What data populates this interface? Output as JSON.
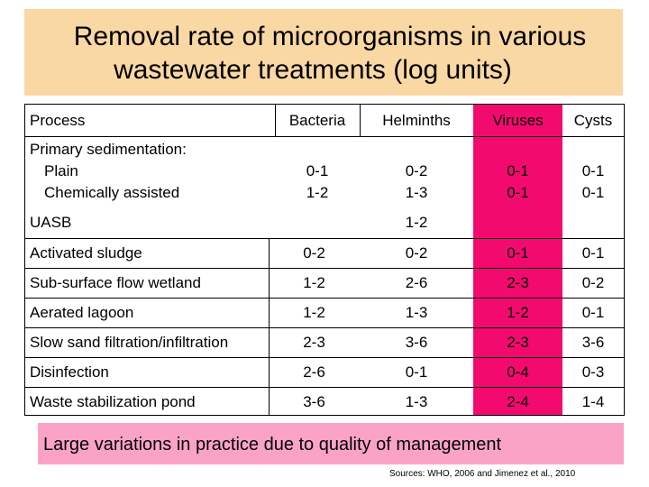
{
  "title": {
    "line1": "Removal rate of microorganisms in various",
    "line2": "wastewater treatments (log units)"
  },
  "table": {
    "headers": {
      "process": "Process",
      "bacteria": "Bacteria",
      "helminths": "Helminths",
      "viruses": "Viruses",
      "cysts": "Cysts"
    },
    "primary": {
      "label1": "Primary sedimentation:",
      "label2": "Plain",
      "label3": "Chemically assisted",
      "bacteria1": "0-1",
      "bacteria2": "1-2",
      "helminths1": "0-2",
      "helminths2": "1-3",
      "viruses1": "0-1",
      "viruses2": "0-1",
      "cysts1": "0-1",
      "cysts2": "0-1"
    },
    "uasb": {
      "label": "UASB",
      "helminths": "1-2"
    },
    "rows": [
      {
        "process": "Activated sludge",
        "bacteria": "0-2",
        "helminths": "0-2",
        "viruses": "0-1",
        "cysts": "0-1"
      },
      {
        "process": "Sub-surface flow wetland",
        "bacteria": "1-2",
        "helminths": "2-6",
        "viruses": "2-3",
        "cysts": "0-2"
      },
      {
        "process": "Aerated lagoon",
        "bacteria": "1-2",
        "helminths": "1-3",
        "viruses": "1-2",
        "cysts": "0-1"
      },
      {
        "process": "Slow sand filtration/infiltration",
        "bacteria": "2-3",
        "helminths": "3-6",
        "viruses": "2-3",
        "cysts": "3-6"
      },
      {
        "process": "Disinfection",
        "bacteria": "2-6",
        "helminths": "0-1",
        "viruses": "0-4",
        "cysts": "0-3"
      },
      {
        "process": "Waste stabilization pond",
        "bacteria": "3-6",
        "helminths": "1-3",
        "viruses": "2-4",
        "cysts": "1-4"
      }
    ]
  },
  "note": "Large variations in practice due to quality of management",
  "source": "Sources: WHO, 2006 and Jimenez et al., 2010",
  "colors": {
    "title_bg": "#fad8a4",
    "viruses_col": "#f30a6f",
    "note_bg": "#fba3c6"
  }
}
